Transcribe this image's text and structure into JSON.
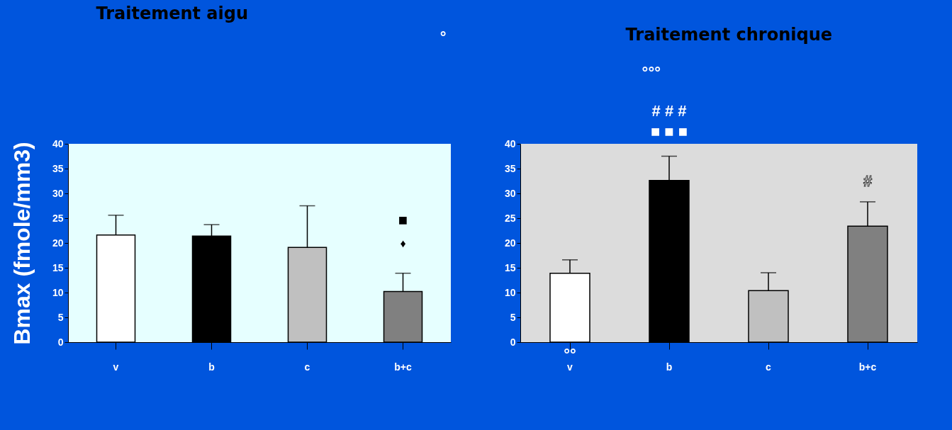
{
  "chart_data": [
    {
      "type": "bar",
      "title": "Traitement aigu",
      "ylabel": "Bmax (fmole/mm3)",
      "categories": [
        "v",
        "b",
        "c",
        "b+c"
      ],
      "values": [
        21.6,
        21.4,
        19.1,
        10.2
      ],
      "errors": [
        [
          21.6,
          25.6
        ],
        [
          21.4,
          23.7
        ],
        [
          19.1,
          27.5
        ],
        [
          10.2,
          13.9
        ]
      ],
      "colors": [
        "#ffffff",
        "#000000",
        "#c0c0c0",
        "#808080"
      ],
      "ylim": [
        0,
        40
      ],
      "yticks": [
        0,
        5,
        10,
        15,
        20,
        25,
        30,
        35,
        40
      ],
      "annotations": [
        "°",
        "♦",
        "■"
      ]
    },
    {
      "type": "bar",
      "title": "Traitement chronique",
      "categories": [
        "v",
        "b",
        "c",
        "b+c"
      ],
      "values": [
        13.9,
        32.6,
        10.4,
        23.4
      ],
      "errors": [
        [
          13.9,
          16.6
        ],
        [
          32.6,
          37.5
        ],
        [
          10.4,
          14.0
        ],
        [
          23.4,
          28.3
        ]
      ],
      "colors": [
        "#ffffff",
        "#000000",
        "#c0c0c0",
        "#808080"
      ],
      "ylim": [
        0,
        40
      ],
      "yticks": [
        0,
        5,
        10,
        15,
        20,
        25,
        30,
        35,
        40
      ],
      "annotations": [
        "°°°",
        "■ ■ ■",
        "# # #",
        "#",
        "°°"
      ]
    }
  ]
}
